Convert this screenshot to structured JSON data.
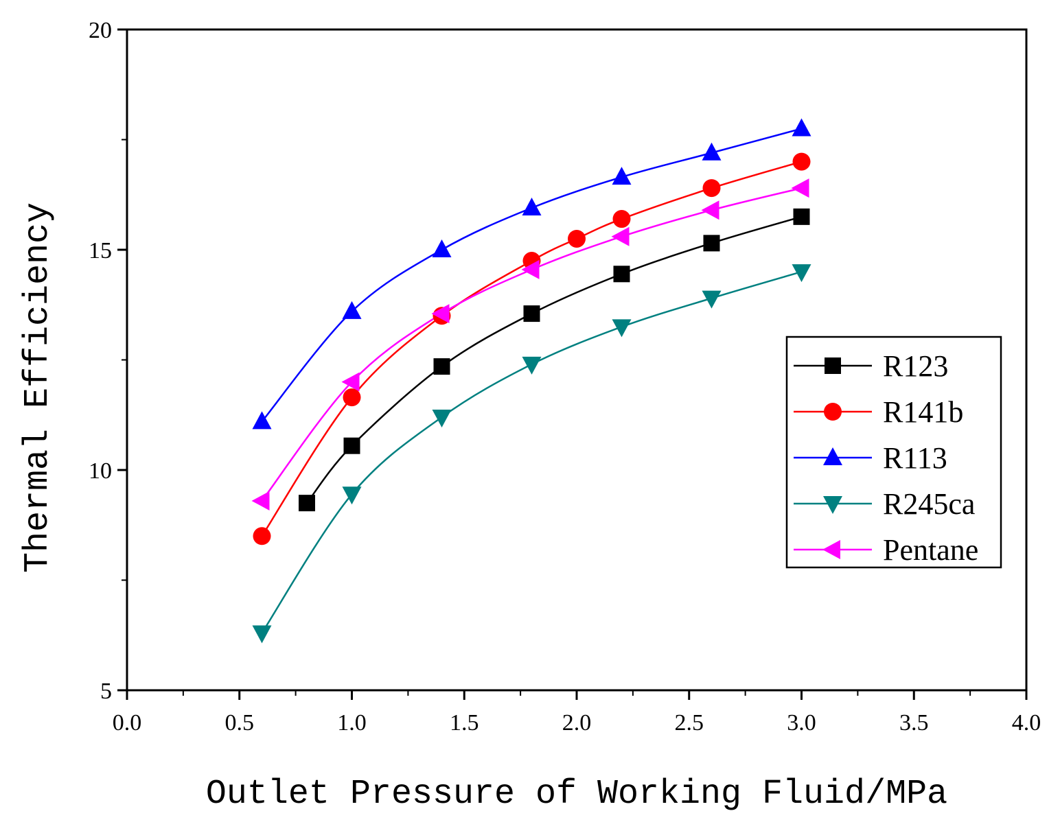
{
  "chart_data": {
    "type": "line",
    "title": "",
    "xlabel": "Outlet Pressure of Working Fluid/MPa",
    "ylabel": "Thermal Efficiency",
    "xlim": [
      0.0,
      4.0
    ],
    "ylim": [
      5,
      20
    ],
    "xticks": [
      "0.0",
      "0.5",
      "1.0",
      "1.5",
      "2.0",
      "2.5",
      "3.0",
      "3.5",
      "4.0"
    ],
    "yticks": [
      "5",
      "10",
      "15",
      "20"
    ],
    "grid": false,
    "legend_position": "right",
    "series": [
      {
        "name": "R123",
        "color": "#000000",
        "marker": "square",
        "x": [
          0.8,
          1.0,
          1.4,
          1.8,
          2.2,
          2.6,
          3.0
        ],
        "y": [
          9.25,
          10.55,
          12.35,
          13.55,
          14.45,
          15.15,
          15.75
        ]
      },
      {
        "name": "R141b",
        "color": "#ff0000",
        "marker": "circle",
        "x": [
          0.6,
          1.0,
          1.4,
          1.8,
          2.0,
          2.2,
          2.6,
          3.0
        ],
        "y": [
          8.5,
          11.65,
          13.5,
          14.75,
          15.25,
          15.7,
          16.4,
          17.0
        ]
      },
      {
        "name": "R113",
        "color": "#0000ff",
        "marker": "triangle-up",
        "x": [
          0.6,
          1.0,
          1.4,
          1.8,
          2.2,
          2.6,
          3.0
        ],
        "y": [
          11.1,
          13.6,
          15.0,
          15.95,
          16.65,
          17.2,
          17.75
        ]
      },
      {
        "name": "R245ca",
        "color": "#008080",
        "marker": "triangle-down",
        "x": [
          0.6,
          1.0,
          1.4,
          1.8,
          2.2,
          2.6,
          3.0
        ],
        "y": [
          6.3,
          9.45,
          11.2,
          12.4,
          13.25,
          13.9,
          14.5
        ]
      },
      {
        "name": "Pentane",
        "color": "#ff00ff",
        "marker": "triangle-left",
        "x": [
          0.6,
          1.0,
          1.4,
          1.8,
          2.2,
          2.6,
          3.0
        ],
        "y": [
          9.3,
          12.0,
          13.55,
          14.55,
          15.3,
          15.9,
          16.4
        ]
      }
    ]
  }
}
